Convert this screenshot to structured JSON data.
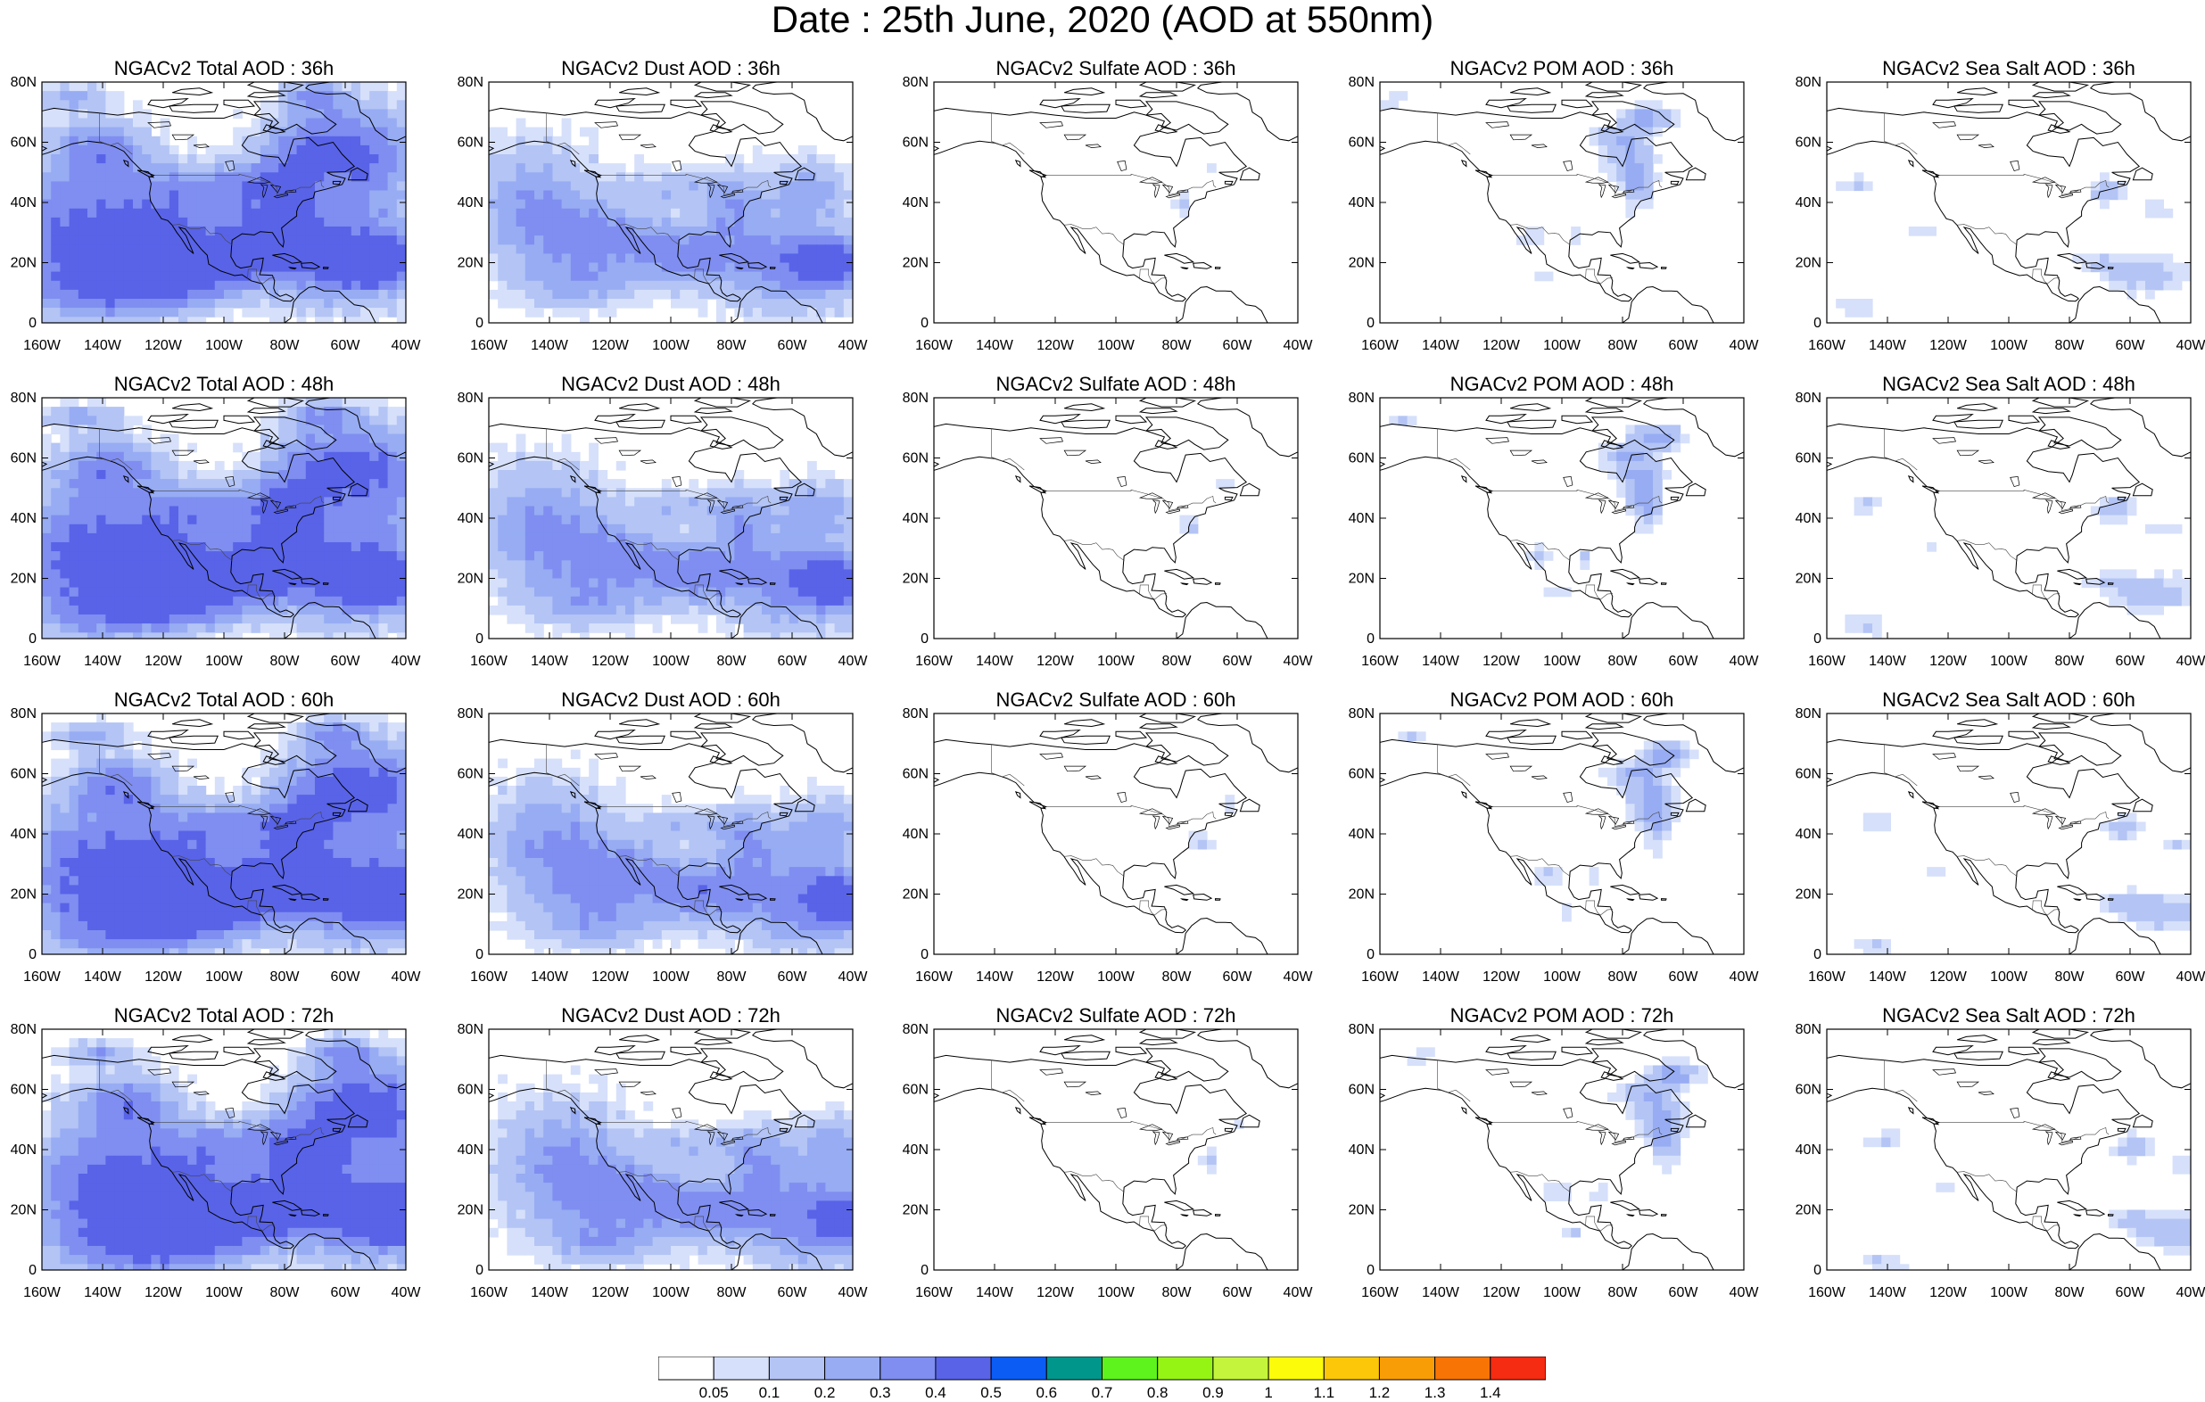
{
  "title": "Date : 25th June, 2020 (AOD at 550nm)",
  "lat_ticks": [
    "80N",
    "60N",
    "40N",
    "20N",
    "0"
  ],
  "lon_ticks": [
    "160W",
    "140W",
    "120W",
    "100W",
    "80W",
    "60W",
    "40W"
  ],
  "extent": {
    "lon": [
      -160,
      -40
    ],
    "lat": [
      0,
      80
    ]
  },
  "panels": [
    {
      "title": "NGACv2 Total AOD : 36h",
      "species": "total",
      "lead_h": 36
    },
    {
      "title": "NGACv2 Dust AOD : 36h",
      "species": "dust",
      "lead_h": 36
    },
    {
      "title": "NGACv2 Sulfate AOD : 36h",
      "species": "sulfate",
      "lead_h": 36
    },
    {
      "title": "NGACv2 POM AOD : 36h",
      "species": "pom",
      "lead_h": 36
    },
    {
      "title": "NGACv2 Sea Salt AOD : 36h",
      "species": "seasalt",
      "lead_h": 36
    },
    {
      "title": "NGACv2 Total AOD : 48h",
      "species": "total",
      "lead_h": 48
    },
    {
      "title": "NGACv2 Dust AOD : 48h",
      "species": "dust",
      "lead_h": 48
    },
    {
      "title": "NGACv2 Sulfate AOD : 48h",
      "species": "sulfate",
      "lead_h": 48
    },
    {
      "title": "NGACv2 POM AOD : 48h",
      "species": "pom",
      "lead_h": 48
    },
    {
      "title": "NGACv2 Sea Salt AOD : 48h",
      "species": "seasalt",
      "lead_h": 48
    },
    {
      "title": "NGACv2 Total AOD : 60h",
      "species": "total",
      "lead_h": 60
    },
    {
      "title": "NGACv2 Dust AOD : 60h",
      "species": "dust",
      "lead_h": 60
    },
    {
      "title": "NGACv2 Sulfate AOD : 60h",
      "species": "sulfate",
      "lead_h": 60
    },
    {
      "title": "NGACv2 POM AOD : 60h",
      "species": "pom",
      "lead_h": 60
    },
    {
      "title": "NGACv2 Sea Salt AOD : 60h",
      "species": "seasalt",
      "lead_h": 60
    },
    {
      "title": "NGACv2 Total AOD : 72h",
      "species": "total",
      "lead_h": 72
    },
    {
      "title": "NGACv2 Dust AOD : 72h",
      "species": "dust",
      "lead_h": 72
    },
    {
      "title": "NGACv2 Sulfate AOD : 72h",
      "species": "sulfate",
      "lead_h": 72
    },
    {
      "title": "NGACv2 POM AOD : 72h",
      "species": "pom",
      "lead_h": 72
    },
    {
      "title": "NGACv2 Sea Salt  AOD : 72h",
      "species": "seasalt",
      "lead_h": 72
    }
  ],
  "colorbar": {
    "labels": [
      "0.05",
      "0.1",
      "0.2",
      "0.3",
      "0.4",
      "0.5",
      "0.6",
      "0.7",
      "0.8",
      "0.9",
      "1",
      "1.1",
      "1.2",
      "1.3",
      "1.4"
    ],
    "colors": [
      "#ffffff",
      "#d6e0fa",
      "#b3c4f5",
      "#97acf3",
      "#7f8ef0",
      "#5863e8",
      "#0a5cf5",
      "#00968c",
      "#5ef31c",
      "#96f414",
      "#c4f53c",
      "#fbfb0a",
      "#fbc708",
      "#f99d07",
      "#f87404",
      "#f52b12"
    ]
  }
}
